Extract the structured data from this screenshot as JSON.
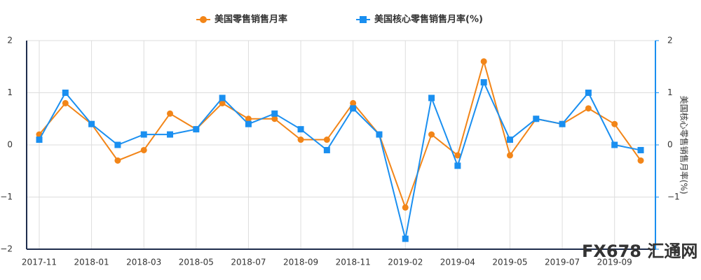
{
  "chart_data": {
    "type": "line",
    "categories": [
      "2017-11",
      null,
      "2018-01",
      null,
      "2018-03",
      null,
      "2018-05",
      null,
      "2018-07",
      null,
      "2018-09",
      null,
      "2018-11",
      null,
      "2019-02",
      null,
      "2019-04",
      null,
      "2019-05",
      null,
      "2019-07",
      null,
      "2019-09",
      null
    ],
    "series": [
      {
        "name": "美国零售销售月率",
        "color": "#f28518",
        "values": [
          0.2,
          0.8,
          0.4,
          -0.3,
          -0.1,
          0.6,
          0.3,
          0.8,
          0.5,
          0.5,
          0.1,
          0.1,
          0.8,
          0.2,
          -1.2,
          0.2,
          -0.2,
          1.6,
          -0.2,
          0.5,
          0.4,
          0.7,
          0.4,
          -0.3
        ]
      },
      {
        "name": "美国核心零售销售月率(%)",
        "color": "#1a8ff0",
        "axis": "y2",
        "values": [
          0.1,
          1.0,
          0.4,
          0.0,
          0.2,
          0.2,
          0.3,
          0.9,
          0.4,
          0.6,
          0.3,
          -0.1,
          0.7,
          0.2,
          -1.8,
          0.9,
          -0.4,
          1.2,
          0.1,
          0.5,
          0.4,
          1.0,
          0.0,
          -0.1
        ]
      }
    ],
    "ylim": [
      -2,
      2
    ],
    "yticks": [
      {
        "value": -2,
        "label": "−2"
      },
      {
        "value": -1,
        "label": "−1"
      },
      0,
      1,
      2
    ],
    "y2lim": [
      -2,
      2
    ],
    "y2ticks": [
      {
        "value": -2,
        "label": "−2"
      },
      {
        "value": -1,
        "label": "−1"
      },
      0,
      1,
      2
    ],
    "y2label": "美国核心零售销售月率(%)",
    "grid": true,
    "legend": "top",
    "watermark": "FX678 汇通网"
  }
}
